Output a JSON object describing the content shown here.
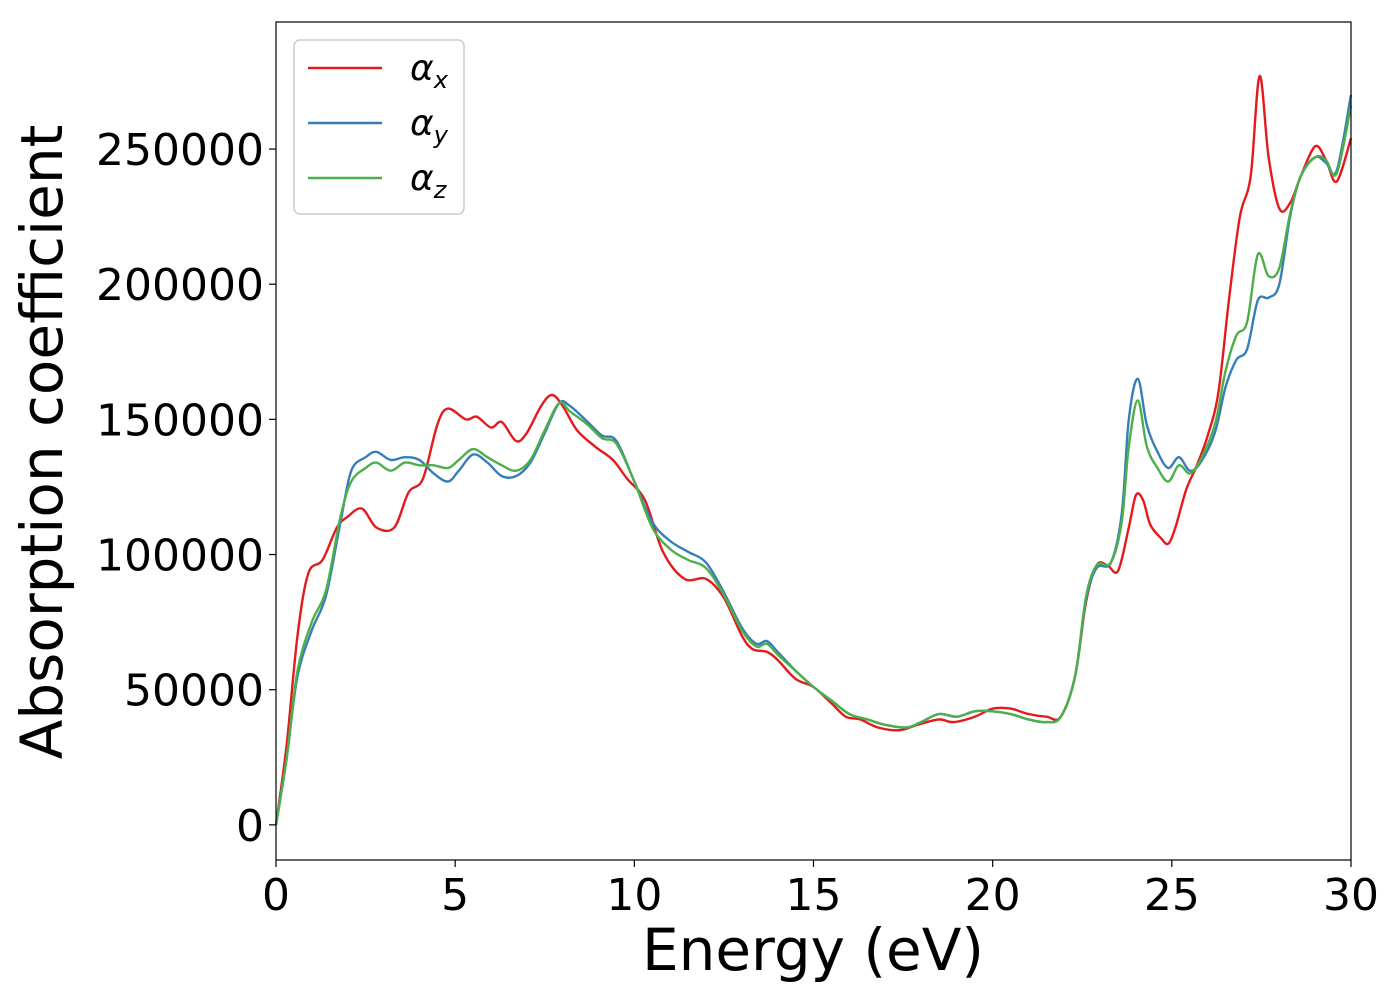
{
  "chart_data": {
    "type": "line",
    "xlabel": "Energy (eV)",
    "ylabel": "Absorption coefficient",
    "xlim": [
      0,
      30
    ],
    "ylim": [
      -13000,
      297000
    ],
    "xticks": [
      0,
      5,
      10,
      15,
      20,
      25,
      30
    ],
    "yticks": [
      0,
      50000,
      100000,
      150000,
      200000,
      250000
    ],
    "grid": false,
    "legend": "top-left",
    "series": [
      {
        "name": "α_x",
        "greek": "α",
        "sub": "x",
        "color": "#e41a1c",
        "points": [
          [
            0,
            0
          ],
          [
            0.3,
            30000
          ],
          [
            0.6,
            70000
          ],
          [
            0.9,
            93000
          ],
          [
            1.3,
            98000
          ],
          [
            1.7,
            110000
          ],
          [
            2.0,
            114000
          ],
          [
            2.4,
            117000
          ],
          [
            2.8,
            110000
          ],
          [
            3.3,
            110000
          ],
          [
            3.7,
            123000
          ],
          [
            4.1,
            128000
          ],
          [
            4.5,
            148000
          ],
          [
            4.8,
            154000
          ],
          [
            5.3,
            150000
          ],
          [
            5.6,
            151000
          ],
          [
            6.0,
            147000
          ],
          [
            6.3,
            149000
          ],
          [
            6.7,
            142000
          ],
          [
            7.0,
            145000
          ],
          [
            7.4,
            155000
          ],
          [
            7.7,
            159000
          ],
          [
            8.0,
            155000
          ],
          [
            8.4,
            146000
          ],
          [
            8.9,
            140000
          ],
          [
            9.4,
            135000
          ],
          [
            9.8,
            128000
          ],
          [
            10.3,
            120000
          ],
          [
            10.8,
            101000
          ],
          [
            11.4,
            91000
          ],
          [
            12.0,
            91000
          ],
          [
            12.5,
            84000
          ],
          [
            13.0,
            70000
          ],
          [
            13.3,
            65000
          ],
          [
            13.7,
            64000
          ],
          [
            14.0,
            61000
          ],
          [
            14.5,
            54000
          ],
          [
            15.0,
            51000
          ],
          [
            15.5,
            45000
          ],
          [
            15.9,
            40000
          ],
          [
            16.3,
            39000
          ],
          [
            16.8,
            36000
          ],
          [
            17.4,
            35000
          ],
          [
            17.9,
            37000
          ],
          [
            18.5,
            39000
          ],
          [
            18.9,
            38000
          ],
          [
            19.5,
            40000
          ],
          [
            20.0,
            43000
          ],
          [
            20.5,
            43000
          ],
          [
            21.0,
            41000
          ],
          [
            21.5,
            40000
          ],
          [
            21.9,
            40000
          ],
          [
            22.3,
            55000
          ],
          [
            22.6,
            82000
          ],
          [
            22.9,
            96000
          ],
          [
            23.2,
            96000
          ],
          [
            23.5,
            94000
          ],
          [
            23.8,
            110000
          ],
          [
            24.0,
            122000
          ],
          [
            24.2,
            120000
          ],
          [
            24.4,
            111000
          ],
          [
            24.7,
            106000
          ],
          [
            24.9,
            104000
          ],
          [
            25.1,
            110000
          ],
          [
            25.4,
            124000
          ],
          [
            25.7,
            133000
          ],
          [
            26.0,
            144000
          ],
          [
            26.3,
            160000
          ],
          [
            26.6,
            195000
          ],
          [
            26.9,
            225000
          ],
          [
            27.2,
            240000
          ],
          [
            27.45,
            277000
          ],
          [
            27.7,
            247000
          ],
          [
            28.0,
            228000
          ],
          [
            28.3,
            230000
          ],
          [
            28.6,
            240000
          ],
          [
            29.0,
            251000
          ],
          [
            29.3,
            246000
          ],
          [
            29.6,
            238000
          ],
          [
            30.0,
            254000
          ]
        ]
      },
      {
        "name": "α_y",
        "greek": "α",
        "sub": "y",
        "color": "#377eb8",
        "points": [
          [
            0,
            0
          ],
          [
            0.3,
            25000
          ],
          [
            0.6,
            55000
          ],
          [
            1.0,
            72000
          ],
          [
            1.4,
            85000
          ],
          [
            1.8,
            112000
          ],
          [
            2.1,
            131000
          ],
          [
            2.5,
            136000
          ],
          [
            2.8,
            138000
          ],
          [
            3.2,
            135000
          ],
          [
            3.6,
            136000
          ],
          [
            4.0,
            135000
          ],
          [
            4.4,
            130000
          ],
          [
            4.8,
            127000
          ],
          [
            5.1,
            131000
          ],
          [
            5.5,
            137000
          ],
          [
            5.9,
            134000
          ],
          [
            6.3,
            129000
          ],
          [
            6.7,
            129000
          ],
          [
            7.1,
            134000
          ],
          [
            7.5,
            145000
          ],
          [
            7.9,
            156000
          ],
          [
            8.2,
            155000
          ],
          [
            8.7,
            149000
          ],
          [
            9.1,
            144000
          ],
          [
            9.5,
            142000
          ],
          [
            10.0,
            127000
          ],
          [
            10.5,
            112000
          ],
          [
            11.0,
            105000
          ],
          [
            11.5,
            101000
          ],
          [
            12.0,
            97000
          ],
          [
            12.5,
            86000
          ],
          [
            13.0,
            73000
          ],
          [
            13.4,
            67000
          ],
          [
            13.7,
            68000
          ],
          [
            14.0,
            64000
          ],
          [
            14.5,
            57000
          ],
          [
            15.0,
            51000
          ],
          [
            15.5,
            46000
          ],
          [
            16.0,
            41000
          ],
          [
            16.5,
            39000
          ],
          [
            17.0,
            37000
          ],
          [
            17.6,
            36000
          ],
          [
            18.0,
            38000
          ],
          [
            18.5,
            41000
          ],
          [
            19.0,
            40000
          ],
          [
            19.5,
            42000
          ],
          [
            20.0,
            42000
          ],
          [
            20.5,
            41000
          ],
          [
            21.0,
            39000
          ],
          [
            21.5,
            38000
          ],
          [
            21.9,
            40000
          ],
          [
            22.3,
            55000
          ],
          [
            22.6,
            83000
          ],
          [
            22.9,
            95000
          ],
          [
            23.3,
            97000
          ],
          [
            23.6,
            115000
          ],
          [
            23.8,
            150000
          ],
          [
            24.05,
            165000
          ],
          [
            24.3,
            148000
          ],
          [
            24.6,
            138000
          ],
          [
            24.9,
            132000
          ],
          [
            25.2,
            136000
          ],
          [
            25.5,
            131000
          ],
          [
            25.8,
            134000
          ],
          [
            26.2,
            145000
          ],
          [
            26.5,
            162000
          ],
          [
            26.8,
            172000
          ],
          [
            27.1,
            176000
          ],
          [
            27.4,
            194000
          ],
          [
            27.7,
            195000
          ],
          [
            28.0,
            200000
          ],
          [
            28.3,
            225000
          ],
          [
            28.6,
            240000
          ],
          [
            29.0,
            247000
          ],
          [
            29.3,
            245000
          ],
          [
            29.6,
            242000
          ],
          [
            30.0,
            270000
          ]
        ]
      },
      {
        "name": "α_z",
        "greek": "α",
        "sub": "z",
        "color": "#4daf4a",
        "points": [
          [
            0,
            0
          ],
          [
            0.3,
            25000
          ],
          [
            0.6,
            57000
          ],
          [
            1.0,
            75000
          ],
          [
            1.4,
            87000
          ],
          [
            1.8,
            114000
          ],
          [
            2.1,
            127000
          ],
          [
            2.5,
            132000
          ],
          [
            2.8,
            134000
          ],
          [
            3.2,
            131000
          ],
          [
            3.6,
            134000
          ],
          [
            4.0,
            133000
          ],
          [
            4.4,
            133000
          ],
          [
            4.8,
            132000
          ],
          [
            5.1,
            135000
          ],
          [
            5.5,
            139000
          ],
          [
            5.9,
            136000
          ],
          [
            6.3,
            133000
          ],
          [
            6.7,
            131000
          ],
          [
            7.1,
            135000
          ],
          [
            7.5,
            146000
          ],
          [
            7.9,
            156000
          ],
          [
            8.2,
            153000
          ],
          [
            8.7,
            148000
          ],
          [
            9.1,
            143000
          ],
          [
            9.5,
            141000
          ],
          [
            10.0,
            127000
          ],
          [
            10.5,
            110000
          ],
          [
            11.0,
            102000
          ],
          [
            11.5,
            98000
          ],
          [
            12.0,
            95000
          ],
          [
            12.5,
            85000
          ],
          [
            13.0,
            72000
          ],
          [
            13.4,
            66000
          ],
          [
            13.7,
            67000
          ],
          [
            14.0,
            63000
          ],
          [
            14.5,
            57000
          ],
          [
            15.0,
            51000
          ],
          [
            15.5,
            46000
          ],
          [
            16.0,
            41000
          ],
          [
            16.5,
            39000
          ],
          [
            17.0,
            37000
          ],
          [
            17.6,
            36000
          ],
          [
            18.0,
            38000
          ],
          [
            18.5,
            41000
          ],
          [
            19.0,
            40000
          ],
          [
            19.5,
            42000
          ],
          [
            20.0,
            42000
          ],
          [
            20.5,
            41000
          ],
          [
            21.0,
            39000
          ],
          [
            21.5,
            38000
          ],
          [
            21.9,
            40000
          ],
          [
            22.3,
            55000
          ],
          [
            22.6,
            84000
          ],
          [
            22.9,
            96000
          ],
          [
            23.3,
            97000
          ],
          [
            23.6,
            112000
          ],
          [
            23.8,
            140000
          ],
          [
            24.05,
            157000
          ],
          [
            24.3,
            140000
          ],
          [
            24.6,
            132000
          ],
          [
            24.9,
            127000
          ],
          [
            25.2,
            133000
          ],
          [
            25.5,
            130000
          ],
          [
            25.8,
            135000
          ],
          [
            26.2,
            148000
          ],
          [
            26.5,
            168000
          ],
          [
            26.8,
            181000
          ],
          [
            27.1,
            186000
          ],
          [
            27.4,
            211000
          ],
          [
            27.7,
            203000
          ],
          [
            28.0,
            206000
          ],
          [
            28.3,
            226000
          ],
          [
            28.6,
            240000
          ],
          [
            29.0,
            247000
          ],
          [
            29.3,
            246000
          ],
          [
            29.6,
            241000
          ],
          [
            30.0,
            266000
          ]
        ]
      }
    ]
  }
}
